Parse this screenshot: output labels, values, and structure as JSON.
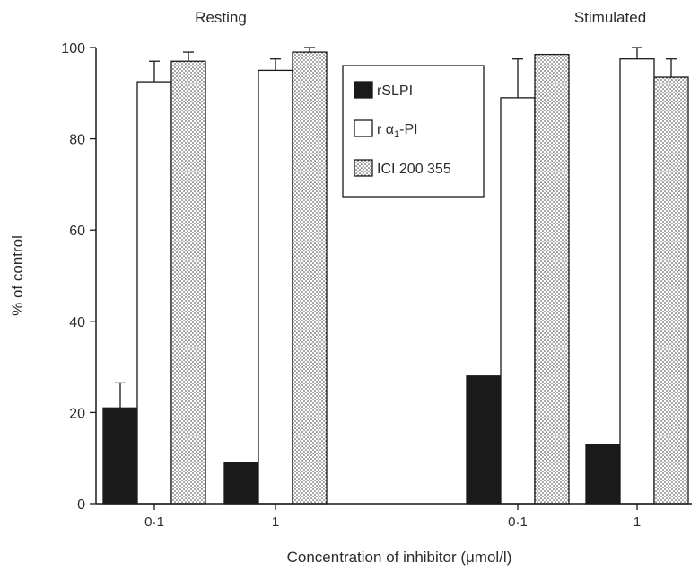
{
  "chart_data": {
    "type": "bar",
    "title": "",
    "xlabel": "Concentration of inhibitor (μmol/l)",
    "ylabel": "% of control",
    "ylim": [
      0,
      100
    ],
    "yticks": [
      "0",
      "20",
      "40",
      "60",
      "80",
      "100"
    ],
    "grid": false,
    "legend_position": "top-center",
    "groups": [
      {
        "label": "Resting",
        "categories": [
          "0·1",
          "1"
        ]
      },
      {
        "label": "Stimulated",
        "categories": [
          "0·1",
          "1"
        ]
      }
    ],
    "series": [
      {
        "name": "rSLPI",
        "style": "solid",
        "color": "#1a1a1a",
        "values": [
          21,
          9,
          28,
          13
        ],
        "errors": [
          5.5,
          null,
          null,
          null
        ]
      },
      {
        "name": "r α₁-PI",
        "name_parts": [
          "r α",
          "1",
          "-PI"
        ],
        "style": "open",
        "color": "#ffffff",
        "values": [
          92.5,
          95,
          89,
          97.5
        ],
        "errors": [
          4.5,
          2.5,
          8.5,
          2.5
        ]
      },
      {
        "name": "ICI 200 355",
        "style": "dotted",
        "color": "#ffffff",
        "values": [
          97,
          99,
          98.5,
          93.5
        ],
        "errors": [
          2,
          1,
          null,
          4
        ]
      }
    ]
  }
}
